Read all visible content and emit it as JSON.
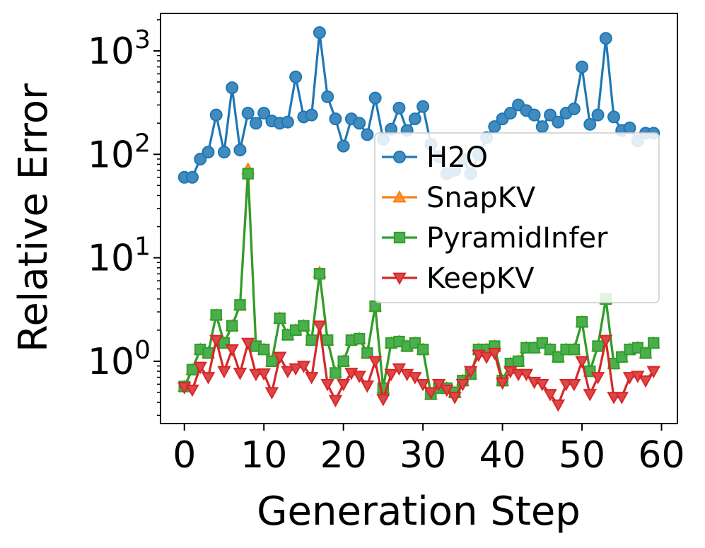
{
  "chart_data": {
    "type": "line",
    "xlabel": "Generation Step",
    "ylabel": "Relative Error",
    "yscale": "log",
    "xlim": [
      -3,
      62
    ],
    "ylim": [
      0.25,
      2300
    ],
    "xticks": [
      0,
      10,
      20,
      30,
      40,
      50,
      60
    ],
    "yticks": [
      {
        "value": 1,
        "base": "10",
        "exp": "0"
      },
      {
        "value": 10,
        "base": "10",
        "exp": "1"
      },
      {
        "value": 100,
        "base": "10",
        "exp": "2"
      },
      {
        "value": 1000,
        "base": "10",
        "exp": "3"
      }
    ],
    "legend_position": "center-right",
    "x": [
      0,
      1,
      2,
      3,
      4,
      5,
      6,
      7,
      8,
      9,
      10,
      11,
      12,
      13,
      14,
      15,
      16,
      17,
      18,
      19,
      20,
      21,
      22,
      23,
      24,
      25,
      26,
      27,
      28,
      29,
      30,
      31,
      32,
      33,
      34,
      35,
      36,
      37,
      38,
      39,
      40,
      41,
      42,
      43,
      44,
      45,
      46,
      47,
      48,
      49,
      50,
      51,
      52,
      53,
      54,
      55,
      56,
      57,
      58,
      59
    ],
    "series": [
      {
        "name": "H2O",
        "color": "#1f77b4",
        "marker": "circle",
        "values": [
          60,
          60,
          90,
          105,
          240,
          105,
          440,
          110,
          250,
          200,
          250,
          210,
          200,
          205,
          560,
          230,
          240,
          1500,
          360,
          220,
          120,
          220,
          200,
          155,
          350,
          140,
          175,
          280,
          170,
          220,
          290,
          125,
          95,
          65,
          70,
          90,
          65,
          100,
          145,
          185,
          220,
          250,
          300,
          265,
          240,
          185,
          240,
          205,
          250,
          275,
          700,
          195,
          240,
          1320,
          230,
          170,
          180,
          135,
          160,
          160
        ]
      },
      {
        "name": "SnapKV",
        "color": "#ff7f0e",
        "marker": "triangle-up",
        "values": [
          0.57,
          0.83,
          1.3,
          1.2,
          2.8,
          1.5,
          2.2,
          3.5,
          72,
          1.4,
          1.3,
          1.0,
          2.6,
          1.8,
          2.0,
          2.2,
          1.6,
          7.2,
          1.6,
          0.77,
          1.0,
          1.6,
          1.65,
          1.2,
          3.4,
          0.55,
          1.5,
          1.55,
          1.4,
          1.5,
          1.3,
          0.48,
          0.55,
          0.55,
          0.5,
          0.65,
          0.75,
          1.3,
          1.3,
          1.4,
          0.65,
          0.95,
          1.0,
          1.35,
          1.35,
          1.5,
          1.3,
          1.1,
          1.3,
          1.3,
          2.4,
          0.8,
          1.4,
          4.0,
          0.95,
          1.1,
          1.3,
          1.35,
          1.2,
          1.5
        ]
      },
      {
        "name": "PyramidInfer",
        "color": "#2ca02c",
        "marker": "square",
        "values": [
          0.57,
          0.83,
          1.3,
          1.2,
          2.8,
          1.5,
          2.2,
          3.5,
          65,
          1.4,
          1.3,
          1.0,
          2.6,
          1.8,
          2.0,
          2.2,
          1.6,
          7.0,
          1.6,
          0.77,
          1.0,
          1.6,
          1.65,
          1.2,
          3.4,
          0.55,
          1.5,
          1.55,
          1.4,
          1.5,
          1.3,
          0.48,
          0.55,
          0.55,
          0.5,
          0.65,
          0.75,
          1.3,
          1.3,
          1.4,
          0.65,
          0.95,
          1.0,
          1.35,
          1.35,
          1.5,
          1.3,
          1.1,
          1.3,
          1.3,
          2.4,
          0.8,
          1.4,
          4.0,
          0.95,
          1.1,
          1.3,
          1.35,
          1.2,
          1.5
        ]
      },
      {
        "name": "KeepKV",
        "color": "#d62728",
        "marker": "triangle-down",
        "values": [
          0.56,
          0.53,
          0.88,
          0.7,
          1.6,
          0.8,
          1.3,
          0.77,
          1.5,
          0.75,
          0.76,
          0.5,
          1.1,
          0.8,
          0.85,
          0.9,
          0.7,
          2.2,
          0.6,
          0.42,
          0.6,
          0.77,
          0.72,
          0.58,
          1.0,
          0.43,
          0.75,
          0.85,
          0.75,
          0.7,
          0.6,
          0.5,
          0.6,
          0.53,
          0.45,
          0.6,
          0.8,
          1.15,
          1.1,
          1.2,
          0.62,
          0.8,
          0.75,
          0.75,
          0.63,
          0.6,
          0.48,
          0.38,
          0.6,
          0.6,
          1.0,
          0.48,
          0.7,
          1.6,
          0.45,
          0.45,
          0.7,
          0.72,
          0.65,
          0.8
        ]
      }
    ]
  }
}
